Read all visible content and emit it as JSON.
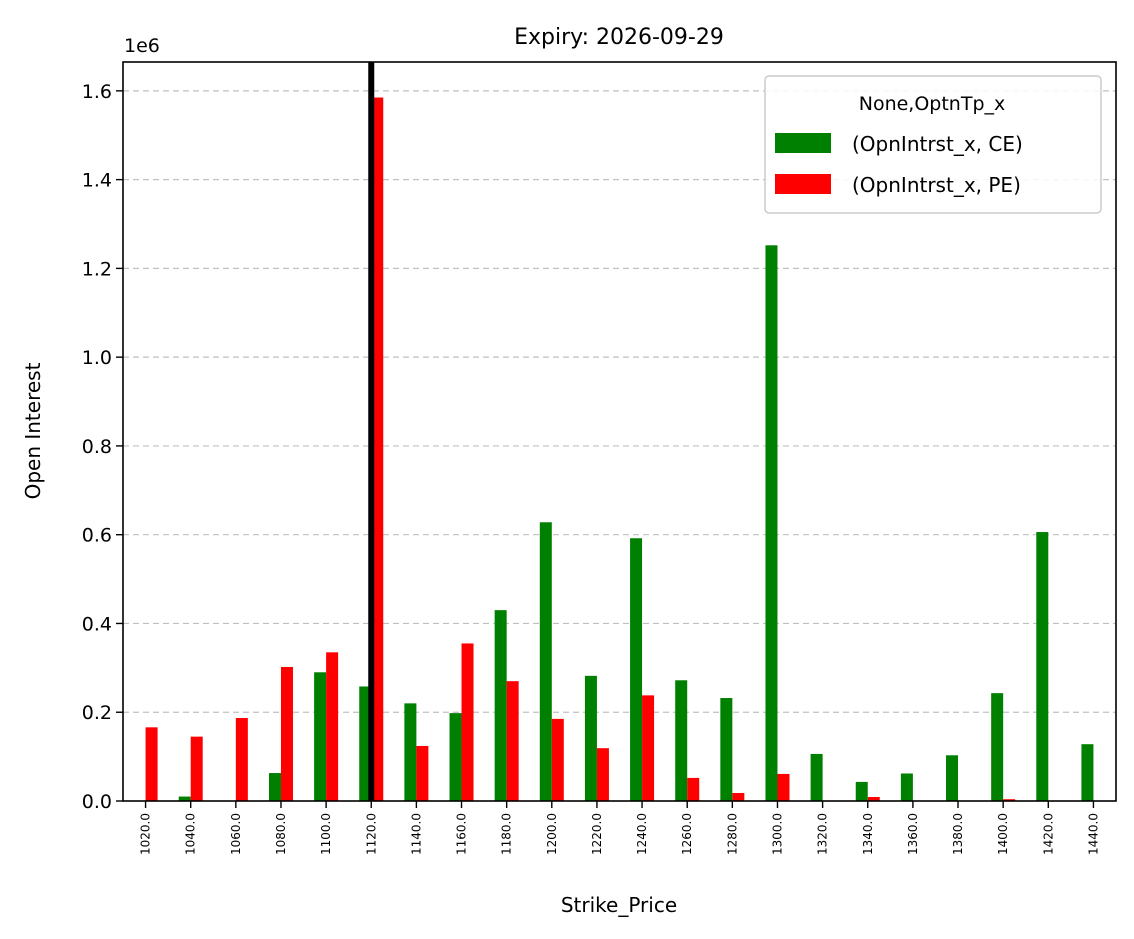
{
  "chart_data": {
    "type": "bar",
    "title": "Expiry: 2026-09-29",
    "xlabel": "Strike_Price",
    "ylabel": "Open Interest",
    "y_offset_label": "1e6",
    "ylim": [
      0,
      1.665
    ],
    "yticks": [
      "0.0",
      "0.2",
      "0.4",
      "0.6",
      "0.8",
      "1.0",
      "1.2",
      "1.4",
      "1.6"
    ],
    "grid": "y dashed",
    "categories": [
      "1020.0",
      "1040.0",
      "1060.0",
      "1080.0",
      "1100.0",
      "1120.0",
      "1140.0",
      "1160.0",
      "1180.0",
      "1200.0",
      "1220.0",
      "1240.0",
      "1260.0",
      "1280.0",
      "1300.0",
      "1320.0",
      "1340.0",
      "1360.0",
      "1380.0",
      "1400.0",
      "1420.0",
      "1440.0"
    ],
    "series": [
      {
        "name": "(OpnIntrst_x, CE)",
        "color": "#008000",
        "values": [
          0,
          0.01,
          0,
          0.063,
          0.29,
          0.258,
          0.22,
          0.198,
          0.43,
          0.628,
          0.282,
          0.592,
          0.272,
          0.232,
          1.252,
          0.106,
          0.043,
          0.062,
          0.103,
          0.243,
          0.606,
          0.128
        ]
      },
      {
        "name": "(OpnIntrst_x, PE)",
        "color": "#ff0000",
        "values": [
          0.166,
          0.145,
          0.187,
          0.302,
          0.335,
          1.585,
          0.124,
          0.355,
          0.27,
          0.185,
          0.119,
          0.238,
          0.052,
          0.018,
          0.061,
          0,
          0.009,
          0,
          0,
          0.004,
          0,
          0
        ]
      }
    ],
    "legend": {
      "title": "None,OptnTp_x",
      "placement": "top-right"
    },
    "vline_category": "1120.0"
  }
}
